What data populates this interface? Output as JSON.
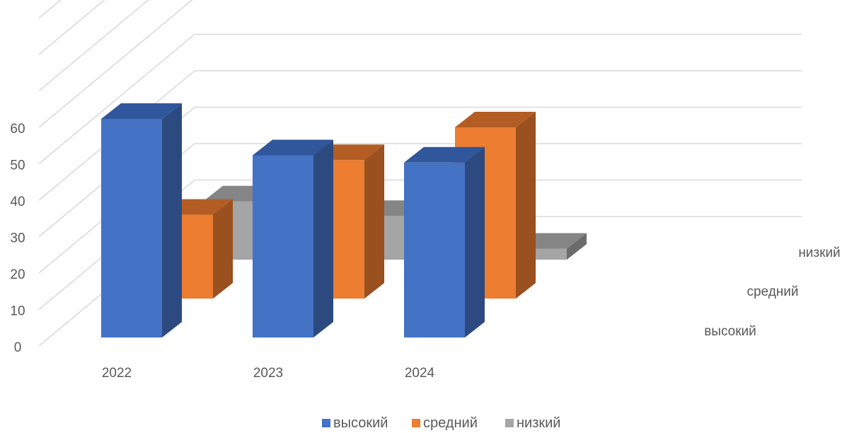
{
  "chart_data": {
    "type": "bar",
    "subtype": "3d-column",
    "categories": [
      "2022",
      "2023",
      "2024"
    ],
    "series": [
      {
        "name": "высокий",
        "values": [
          60,
          50,
          48
        ],
        "color": "#4472c4",
        "color_side": "#2c4a80",
        "color_top": "#30569c"
      },
      {
        "name": "средний",
        "values": [
          23,
          38,
          47
        ],
        "color": "#ed7d31",
        "color_side": "#9a501f",
        "color_top": "#b35d24"
      },
      {
        "name": "низкий",
        "values": [
          16,
          12,
          3
        ],
        "color": "#a5a5a5",
        "color_side": "#6b6b6b",
        "color_top": "#858585"
      }
    ],
    "y_ticks": [
      "0",
      "10",
      "20",
      "30",
      "40",
      "50",
      "60"
    ],
    "ylim": [
      0,
      90
    ],
    "grid": true,
    "legend_position": "bottom",
    "depth_axis_labels": [
      "высокий",
      "средний",
      "низкий"
    ],
    "title": "",
    "xlabel": "",
    "ylabel": ""
  }
}
